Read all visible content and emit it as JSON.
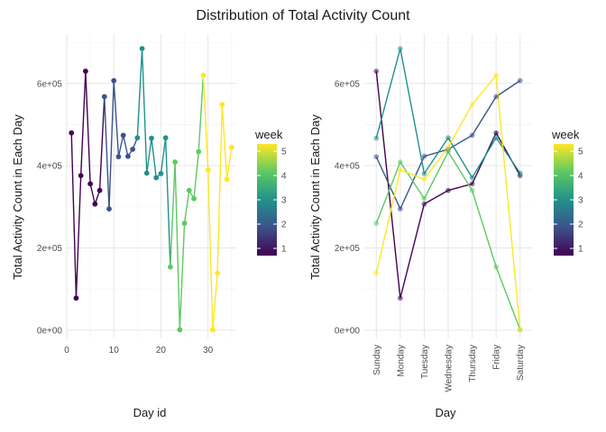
{
  "page": {
    "title": "Distribution of Total Activity Count"
  },
  "chart_data": [
    {
      "type": "line",
      "id": "left",
      "xlabel": "Day id",
      "ylabel": "Total Activity Count in Each Day",
      "xlim": [
        0,
        36
      ],
      "ylim": [
        -20000,
        720000
      ],
      "x_ticks": [
        0,
        10,
        20,
        30
      ],
      "x_tick_labels": [
        "0",
        "10",
        "20",
        "30"
      ],
      "y_ticks": [
        0,
        200000,
        400000,
        600000
      ],
      "y_tick_labels": [
        "0e+00",
        "2e+05",
        "4e+05",
        "6e+05"
      ],
      "grid": true,
      "legend": {
        "title": "week",
        "position": "right",
        "ticks": [
          "1",
          "2",
          "3",
          "4",
          "5"
        ]
      },
      "color_scale": "viridis",
      "points": [
        {
          "x": 1,
          "y": 480000,
          "week": 1
        },
        {
          "x": 2,
          "y": 78000,
          "week": 1
        },
        {
          "x": 3,
          "y": 376000,
          "week": 1
        },
        {
          "x": 4,
          "y": 630000,
          "week": 1
        },
        {
          "x": 5,
          "y": 356000,
          "week": 1
        },
        {
          "x": 6,
          "y": 307000,
          "week": 1
        },
        {
          "x": 7,
          "y": 340000,
          "week": 1
        },
        {
          "x": 8,
          "y": 568000,
          "week": 2
        },
        {
          "x": 9,
          "y": 295000,
          "week": 2
        },
        {
          "x": 10,
          "y": 607000,
          "week": 2
        },
        {
          "x": 11,
          "y": 422000,
          "week": 2
        },
        {
          "x": 12,
          "y": 474000,
          "week": 2
        },
        {
          "x": 13,
          "y": 423000,
          "week": 2
        },
        {
          "x": 14,
          "y": 440000,
          "week": 2
        },
        {
          "x": 15,
          "y": 468000,
          "week": 3
        },
        {
          "x": 16,
          "y": 685000,
          "week": 3
        },
        {
          "x": 17,
          "y": 382000,
          "week": 3
        },
        {
          "x": 18,
          "y": 467000,
          "week": 3
        },
        {
          "x": 19,
          "y": 371000,
          "week": 3
        },
        {
          "x": 20,
          "y": 381000,
          "week": 3
        },
        {
          "x": 21,
          "y": 468000,
          "week": 3
        },
        {
          "x": 22,
          "y": 154000,
          "week": 4
        },
        {
          "x": 23,
          "y": 409000,
          "week": 4
        },
        {
          "x": 24,
          "y": 1000,
          "week": 4
        },
        {
          "x": 25,
          "y": 260000,
          "week": 4
        },
        {
          "x": 26,
          "y": 340000,
          "week": 4
        },
        {
          "x": 27,
          "y": 320000,
          "week": 4
        },
        {
          "x": 28,
          "y": 434000,
          "week": 4
        },
        {
          "x": 29,
          "y": 620000,
          "week": 5
        },
        {
          "x": 30,
          "y": 390000,
          "week": 5
        },
        {
          "x": 31,
          "y": 1000,
          "week": 5
        },
        {
          "x": 32,
          "y": 139000,
          "week": 5
        },
        {
          "x": 33,
          "y": 549000,
          "week": 5
        },
        {
          "x": 34,
          "y": 367000,
          "week": 5
        },
        {
          "x": 35,
          "y": 445000,
          "week": 5
        }
      ]
    },
    {
      "type": "line",
      "id": "right",
      "xlabel": "Day",
      "ylabel": "Total Activity Count in Each Day",
      "categories": [
        "Sunday",
        "Monday",
        "Tuesday",
        "Wednesday",
        "Thursday",
        "Friday",
        "Saturday"
      ],
      "ylim": [
        -20000,
        720000
      ],
      "y_ticks": [
        0,
        200000,
        400000,
        600000
      ],
      "y_tick_labels": [
        "0e+00",
        "2e+05",
        "4e+05",
        "6e+05"
      ],
      "grid": true,
      "legend": {
        "title": "week",
        "position": "right",
        "ticks": [
          "1",
          "2",
          "3",
          "4",
          "5"
        ]
      },
      "color_scale": "viridis",
      "series": [
        {
          "week": 1,
          "values": [
            630000,
            78000,
            307000,
            340000,
            356000,
            480000,
            376000
          ]
        },
        {
          "week": 2,
          "values": [
            422000,
            295000,
            423000,
            440000,
            474000,
            568000,
            607000
          ]
        },
        {
          "week": 3,
          "values": [
            467000,
            685000,
            381000,
            468000,
            371000,
            468000,
            382000
          ]
        },
        {
          "week": 4,
          "values": [
            260000,
            409000,
            320000,
            434000,
            340000,
            154000,
            1000
          ]
        },
        {
          "week": 5,
          "values": [
            139000,
            390000,
            367000,
            445000,
            549000,
            620000,
            1000
          ]
        }
      ]
    }
  ]
}
